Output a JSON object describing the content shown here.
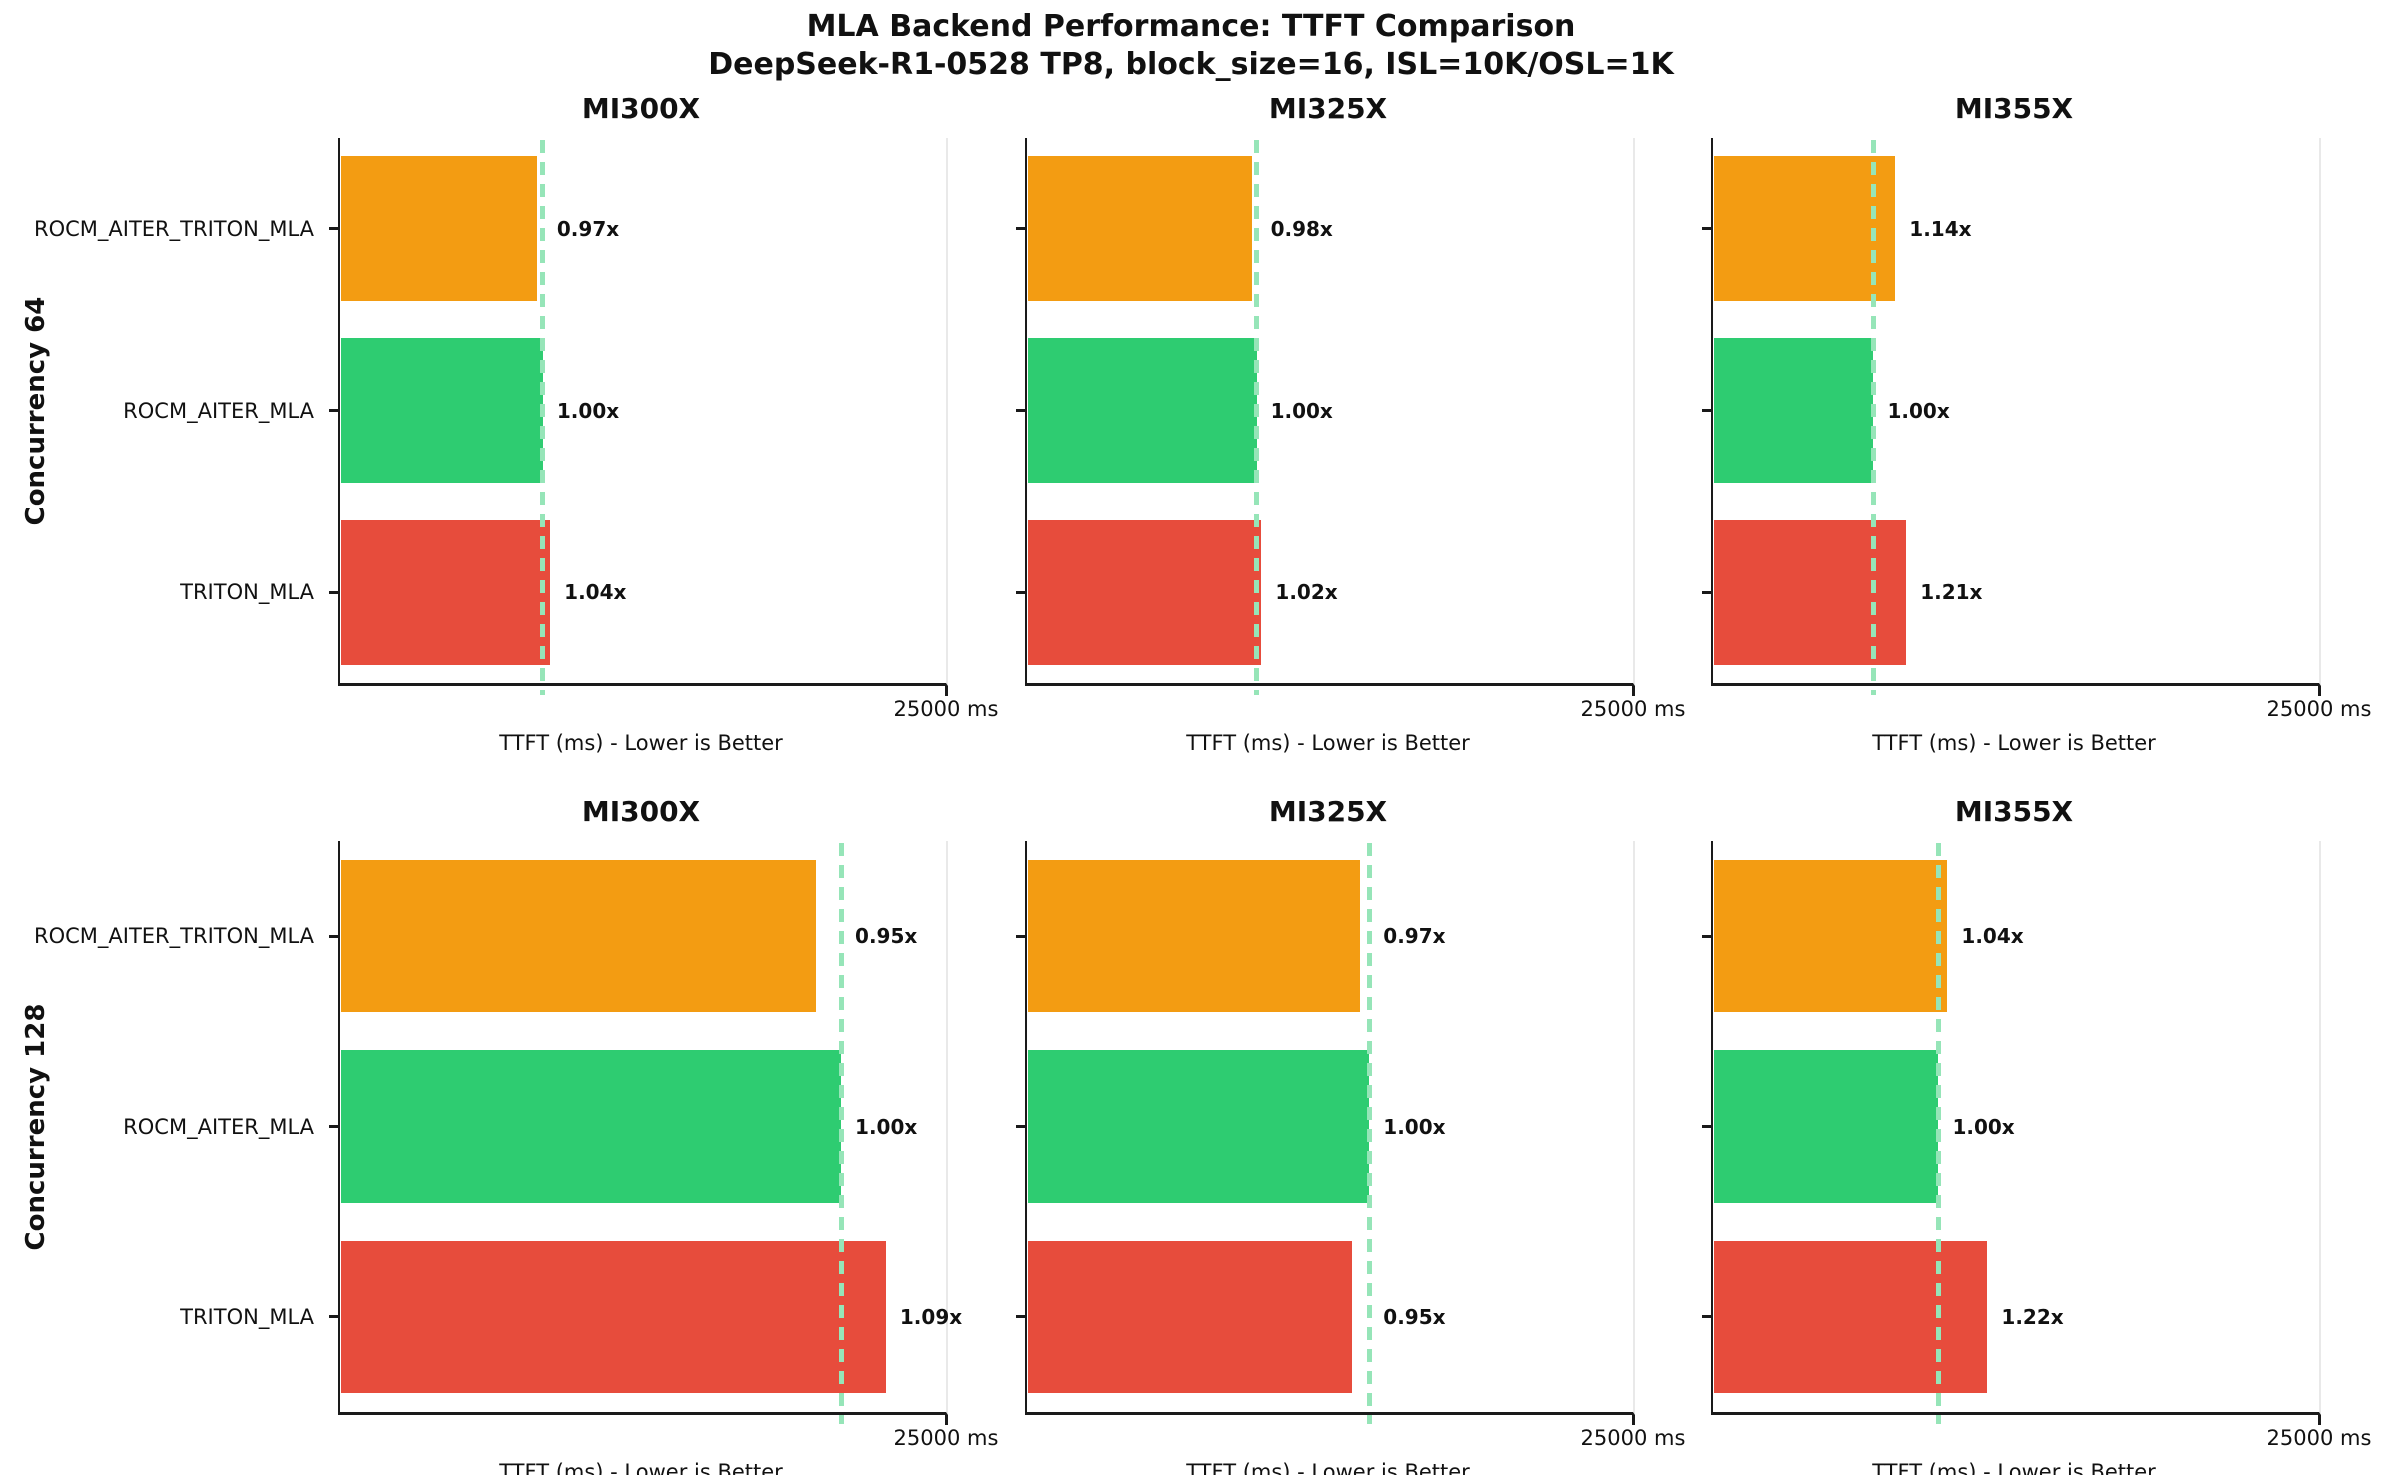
{
  "header": {
    "title": "MLA Backend Performance: TTFT Comparison",
    "subtitle": "DeepSeek-R1-0528 TP8, block_size=16, ISL=10K/OSL=1K"
  },
  "chart_data": {
    "type": "bar",
    "orientation": "horizontal",
    "title": "MLA Backend Performance: TTFT Comparison",
    "subtitle": "DeepSeek-R1-0528 TP8, block_size=16, ISL=10K/OSL=1K",
    "xlabel": "TTFT (ms) - Lower is Better",
    "xlim": [
      0,
      25000
    ],
    "x_tick_label": "25000 ms",
    "grid": false,
    "legend": "none",
    "backends": [
      "ROCM_AITER_TRITON_MLA",
      "ROCM_AITER_MLA",
      "TRITON_MLA"
    ],
    "baseline_backend": "ROCM_AITER_MLA",
    "colors": {
      "ROCM_AITER_TRITON_MLA": "#F39C12",
      "ROCM_AITER_MLA": "#2ECC71",
      "TRITON_MLA": "#E74C3C",
      "baseline_dash": "#96E5B8",
      "spine": "#1A1A1A",
      "right_spine": "#E9E9E9"
    },
    "rows": [
      {
        "label": "Concurrency 64",
        "subplots": [
          {
            "title": "MI300X",
            "bars": [
              {
                "backend": "ROCM_AITER_TRITON_MLA",
                "ttft_ms": 8100,
                "ratio_label": "0.97x"
              },
              {
                "backend": "ROCM_AITER_MLA",
                "ttft_ms": 8350,
                "ratio_label": "1.00x"
              },
              {
                "backend": "TRITON_MLA",
                "ttft_ms": 8650,
                "ratio_label": "1.04x"
              }
            ]
          },
          {
            "title": "MI325X",
            "bars": [
              {
                "backend": "ROCM_AITER_TRITON_MLA",
                "ttft_ms": 9250,
                "ratio_label": "0.98x"
              },
              {
                "backend": "ROCM_AITER_MLA",
                "ttft_ms": 9450,
                "ratio_label": "1.00x"
              },
              {
                "backend": "TRITON_MLA",
                "ttft_ms": 9650,
                "ratio_label": "1.02x"
              }
            ]
          },
          {
            "title": "MI355X",
            "bars": [
              {
                "backend": "ROCM_AITER_TRITON_MLA",
                "ttft_ms": 7500,
                "ratio_label": "1.14x"
              },
              {
                "backend": "ROCM_AITER_MLA",
                "ttft_ms": 6600,
                "ratio_label": "1.00x"
              },
              {
                "backend": "TRITON_MLA",
                "ttft_ms": 7950,
                "ratio_label": "1.21x"
              }
            ]
          }
        ]
      },
      {
        "label": "Concurrency 128",
        "subplots": [
          {
            "title": "MI300X",
            "bars": [
              {
                "backend": "ROCM_AITER_TRITON_MLA",
                "ttft_ms": 19600,
                "ratio_label": "0.95x"
              },
              {
                "backend": "ROCM_AITER_MLA",
                "ttft_ms": 20650,
                "ratio_label": "1.00x"
              },
              {
                "backend": "TRITON_MLA",
                "ttft_ms": 22500,
                "ratio_label": "1.09x"
              }
            ]
          },
          {
            "title": "MI325X",
            "bars": [
              {
                "backend": "ROCM_AITER_TRITON_MLA",
                "ttft_ms": 13700,
                "ratio_label": "0.97x"
              },
              {
                "backend": "ROCM_AITER_MLA",
                "ttft_ms": 14100,
                "ratio_label": "1.00x"
              },
              {
                "backend": "TRITON_MLA",
                "ttft_ms": 13400,
                "ratio_label": "0.95x"
              }
            ]
          },
          {
            "title": "MI355X",
            "bars": [
              {
                "backend": "ROCM_AITER_TRITON_MLA",
                "ttft_ms": 9650,
                "ratio_label": "1.04x"
              },
              {
                "backend": "ROCM_AITER_MLA",
                "ttft_ms": 9280,
                "ratio_label": "1.00x"
              },
              {
                "backend": "TRITON_MLA",
                "ttft_ms": 11300,
                "ratio_label": "1.22x"
              }
            ]
          }
        ]
      }
    ]
  }
}
